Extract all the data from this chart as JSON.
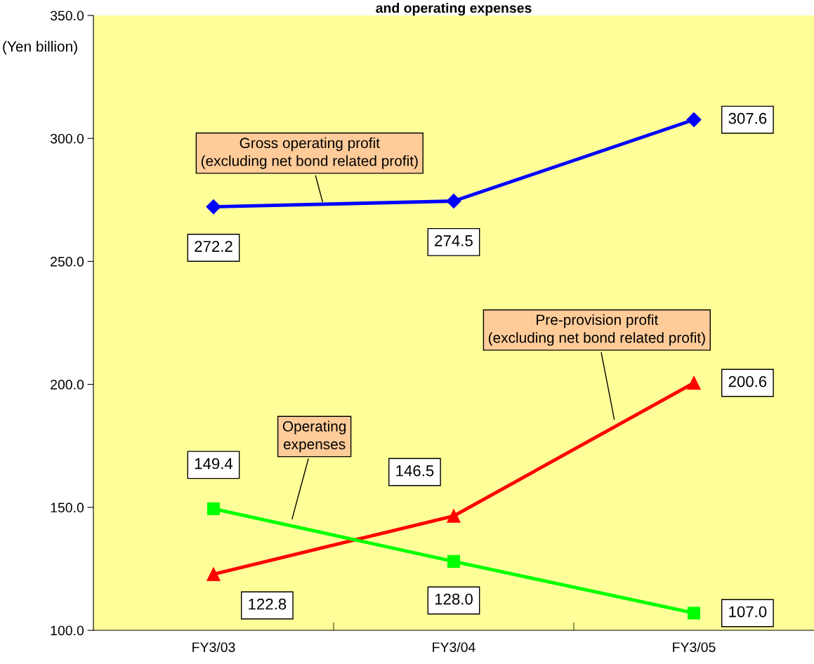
{
  "chart_data": {
    "type": "line",
    "title": "and operating expenses",
    "ylabel": "(Yen billion)",
    "categories": [
      "FY3/03",
      "FY3/04",
      "FY3/05"
    ],
    "series": [
      {
        "name": "Gross operating profit\n(excluding net bond related profit)",
        "color": "#0000ff",
        "marker": "diamond",
        "values": [
          272.2,
          274.5,
          307.6
        ],
        "value_labels": [
          "272.2",
          "274.5",
          "307.6"
        ]
      },
      {
        "name": "Pre-provision profit\n(excluding net bond related profit)",
        "color": "#ff0000",
        "marker": "triangle",
        "values": [
          122.8,
          146.5,
          200.6
        ],
        "value_labels": [
          "122.8",
          "146.5",
          "200.6"
        ]
      },
      {
        "name": "Operating\nexpenses",
        "color": "#00ff00",
        "marker": "square",
        "values": [
          149.4,
          128.0,
          107.0
        ],
        "value_labels": [
          "149.4",
          "128.0",
          "107.0"
        ]
      }
    ],
    "ylim": [
      100,
      350
    ],
    "yticks": [
      {
        "value": 100,
        "label": "100.0"
      },
      {
        "value": 150,
        "label": "150.0"
      },
      {
        "value": 200,
        "label": "200.0"
      },
      {
        "value": 250,
        "label": "250.0"
      },
      {
        "value": 300,
        "label": "300.0"
      },
      {
        "value": 350,
        "label": "350.0"
      }
    ],
    "grid": false,
    "legend": false
  }
}
